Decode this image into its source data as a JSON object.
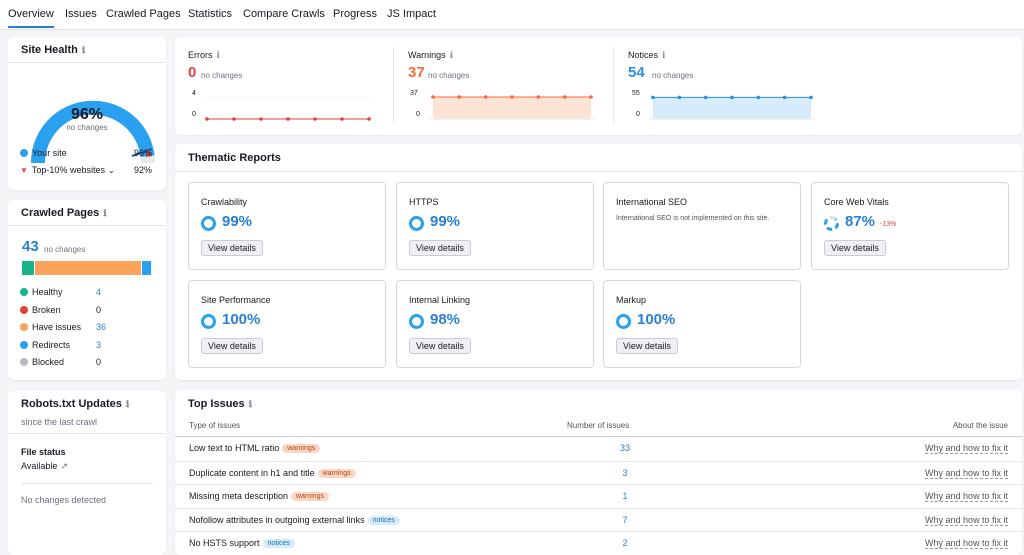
{
  "tabs": [
    "Overview",
    "Issues",
    "Crawled Pages",
    "Statistics",
    "Compare Crawls",
    "Progress",
    "JS Impact"
  ],
  "site_health": {
    "title": "Site Health",
    "value": "96%",
    "sub": "no changes",
    "your_site_label": "Your site",
    "your_site_value": "96%",
    "top_label": "Top-10% websites",
    "top_value": "92%"
  },
  "crawled_pages": {
    "title": "Crawled Pages",
    "count": "43",
    "sub": "no changes",
    "items": [
      {
        "label": "Healthy",
        "value": "4",
        "color": "#19b38a"
      },
      {
        "label": "Broken",
        "value": "0",
        "color": "#e5413b"
      },
      {
        "label": "Have issues",
        "value": "36",
        "color": "#fba35a"
      },
      {
        "label": "Redirects",
        "value": "3",
        "color": "#2aa0f0"
      },
      {
        "label": "Blocked",
        "value": "0",
        "color": "#b8bcc4"
      }
    ]
  },
  "robots": {
    "title": "Robots.txt Updates",
    "sub": "since the last crawl",
    "file_status": "File status",
    "available": "Available",
    "no_changes": "No changes detected"
  },
  "errors": {
    "label": "Errors",
    "value": "0",
    "sub": "no changes",
    "ymax": "4",
    "ymin": "0",
    "color": "#e5413b"
  },
  "warnings": {
    "label": "Warnings",
    "value": "37",
    "sub": "no changes",
    "ymax": "37",
    "ymin": "0",
    "color": "#f26b3a"
  },
  "notices": {
    "label": "Notices",
    "value": "54",
    "sub": "no changes",
    "ymax": "55",
    "ymin": "0",
    "color": "#2a8fe0"
  },
  "thematic": {
    "title": "Thematic Reports",
    "view": "View details",
    "reports": [
      {
        "name": "Crawlability",
        "pct": "99%"
      },
      {
        "name": "HTTPS",
        "pct": "99%"
      },
      {
        "name": "International SEO",
        "note": "International SEO is not implemented on this site."
      },
      {
        "name": "Core Web Vitals",
        "pct": "87%",
        "delta": "-13%"
      },
      {
        "name": "Site Performance",
        "pct": "100%"
      },
      {
        "name": "Internal Linking",
        "pct": "98%"
      },
      {
        "name": "Markup",
        "pct": "100%"
      }
    ]
  },
  "top_issues": {
    "title": "Top Issues",
    "col1": "Type of issues",
    "col2": "Number of issues",
    "col3": "About the issue",
    "link": "Why and how to fix it",
    "rows": [
      {
        "label": "Low text to HTML ratio",
        "badge": "warnings",
        "count": "33"
      },
      {
        "label": "Duplicate content in h1 and title",
        "badge": "warnings",
        "count": "3"
      },
      {
        "label": "Missing meta description",
        "badge": "warnings",
        "count": "1"
      },
      {
        "label": "Nofollow attributes in outgoing external links",
        "badge": "notices",
        "count": "7"
      },
      {
        "label": "No HSTS support",
        "badge": "notices",
        "count": "2"
      }
    ]
  }
}
